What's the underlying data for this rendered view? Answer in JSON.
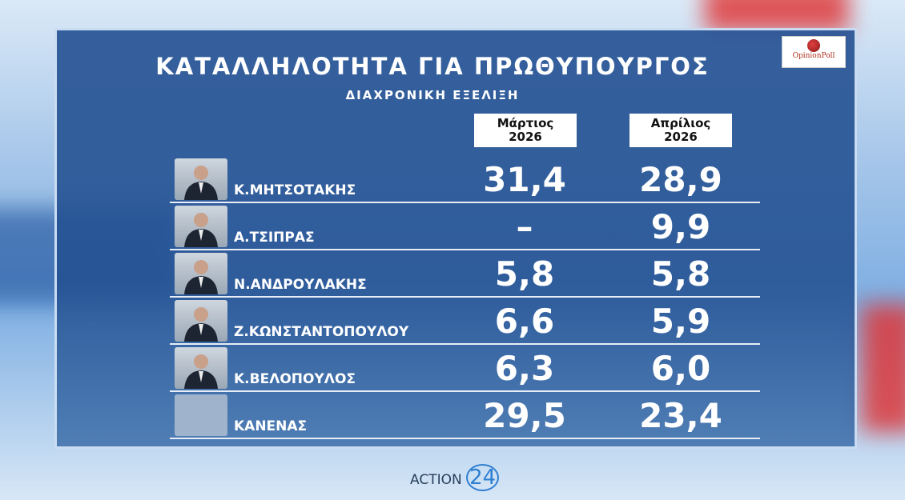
{
  "header": {
    "title": "ΚΑΤΑΛΛΗΛΟΤΗΤΑ ΓΙΑ ΠΡΩΘΥΠΟΥΡΓΟΣ",
    "subtitle": "ΔΙΑΧΡΟΝΙΚΗ ΕΞΕΛΙΞΗ",
    "logo": "OpinionPoll"
  },
  "table": {
    "columns": [
      {
        "month": "Μάρτιος",
        "year": "2026"
      },
      {
        "month": "Απρίλιος",
        "year": "2026"
      }
    ],
    "rows": [
      {
        "name": "Κ.ΜΗΤΣΟΤΑΚΗΣ",
        "values": [
          "31,4",
          "28,9"
        ]
      },
      {
        "name": "Α.ΤΣΙΠΡΑΣ",
        "values": [
          "–",
          "9,9"
        ]
      },
      {
        "name": "Ν.ΑΝΔΡΟΥΛΑΚΗΣ",
        "values": [
          "5,8",
          "5,8"
        ]
      },
      {
        "name": "Ζ.ΚΩΝΣΤΑΝΤΟΠΟΥΛΟΥ",
        "values": [
          "6,6",
          "5,9"
        ]
      },
      {
        "name": "Κ.ΒΕΛΟΠΟΥΛΟΣ",
        "values": [
          "6,3",
          "6,0"
        ]
      },
      {
        "name": "ΚΑΝΕΝΑΣ",
        "values": [
          "29,5",
          "23,4"
        ]
      }
    ]
  },
  "footer": {
    "brand": "ACTION",
    "number": "24"
  }
}
